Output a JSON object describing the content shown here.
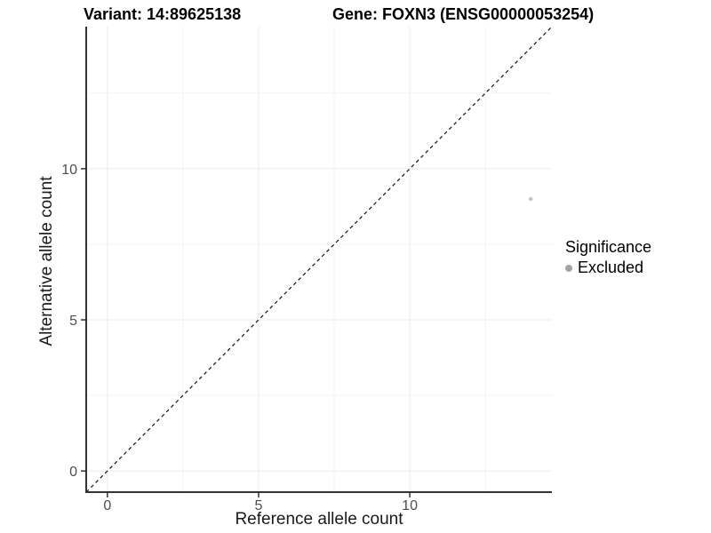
{
  "figure": {
    "title_left": "Variant: 14:89625138",
    "title_right": "Gene: FOXN3 (ENSG00000053254)"
  },
  "axes": {
    "x_label": "Reference allele count",
    "y_label": "Alternative allele count"
  },
  "legend": {
    "title": "Significance",
    "items": [
      {
        "label": "Excluded",
        "color": "#a3a3a3"
      }
    ]
  },
  "chart_data": {
    "type": "scatter",
    "title": "Variant: 14:89625138   Gene: FOXN3 (ENSG00000053254)",
    "xlabel": "Reference allele count",
    "ylabel": "Alternative allele count",
    "xlim": [
      -0.7,
      14.7
    ],
    "ylim": [
      -0.7,
      14.7
    ],
    "x_ticks": [
      0,
      5,
      10
    ],
    "y_ticks": [
      0,
      5,
      10
    ],
    "x_minor_ticks": [
      2.5,
      7.5,
      12.5
    ],
    "y_minor_ticks": [
      2.5,
      7.5,
      12.5
    ],
    "grid": true,
    "legend_position": "right",
    "series": [
      {
        "name": "Excluded",
        "points": [
          {
            "x": 14,
            "y": 9
          }
        ],
        "color": "#c3c3c3",
        "marker_radius": 2.2
      }
    ],
    "reference_line": {
      "type": "identity",
      "slope": 1,
      "intercept": 0,
      "linestyle": "dashed",
      "color": "#111111"
    },
    "colors": {
      "grid_major": "#ebebeb",
      "grid_minor": "#f4f4f4",
      "axis_line": "#333333",
      "tick_mark": "#333333",
      "tick_label": "#4d4d4d",
      "point": "#c3c3c3",
      "legend_dot": "#a3a3a3"
    }
  }
}
